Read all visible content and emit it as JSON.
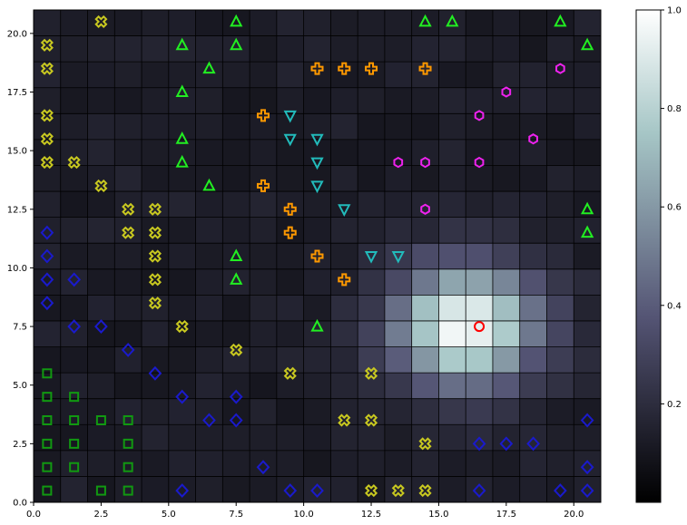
{
  "chart_data": {
    "type": "heatmap",
    "title": "",
    "xlabel": "",
    "ylabel": "",
    "grid_size": [
      21,
      19
    ],
    "xlim": [
      0,
      21
    ],
    "ylim": [
      0,
      21
    ],
    "x_ticks": [
      0,
      2.5,
      5,
      7.5,
      10,
      12.5,
      15,
      17.5,
      20
    ],
    "y_ticks": [
      0,
      2.5,
      5,
      7.5,
      10,
      12.5,
      15,
      17.5,
      20
    ],
    "x_tick_labels": [
      "0.0",
      "2.5",
      "5.0",
      "7.5",
      "10.0",
      "12.5",
      "15.0",
      "17.5",
      "20.0"
    ],
    "y_tick_labels": [
      "0.0",
      "2.5",
      "5.0",
      "7.5",
      "10.0",
      "12.5",
      "15.0",
      "17.5",
      "20.0"
    ],
    "colorbar": {
      "vmin": 0,
      "vmax": 1,
      "ticks": [
        0.2,
        0.4,
        0.6,
        0.8,
        1.0
      ],
      "tick_labels": [
        "0.2",
        "0.4",
        "0.6",
        "0.8",
        "1.0"
      ],
      "colormap": "bone"
    },
    "heat_peaks": [
      {
        "x": 16,
        "y": 7.5,
        "height": 0.85,
        "spread": 1.9
      }
    ],
    "heat_background": 0.1,
    "marker_legend": {
      "circle": "#ff0000",
      "cross": "#c8c820",
      "plus": "#ff9900",
      "triangle_up": "#22ee22",
      "triangle_down": "#22bbbb",
      "hexagon": "#ee22ee",
      "diamond": "#1a1acc",
      "square": "#119911"
    },
    "markers": [
      {
        "shape": "circle",
        "x": 16.5,
        "y": 7.5
      },
      {
        "shape": "cross",
        "x": 2.5,
        "y": 20.5
      },
      {
        "shape": "cross",
        "x": 0.5,
        "y": 19.5
      },
      {
        "shape": "cross",
        "x": 0.5,
        "y": 18.5
      },
      {
        "shape": "cross",
        "x": 0.5,
        "y": 16.5
      },
      {
        "shape": "cross",
        "x": 0.5,
        "y": 15.5
      },
      {
        "shape": "cross",
        "x": 0.5,
        "y": 14.5
      },
      {
        "shape": "cross",
        "x": 1.5,
        "y": 14.5
      },
      {
        "shape": "cross",
        "x": 2.5,
        "y": 13.5
      },
      {
        "shape": "cross",
        "x": 3.5,
        "y": 12.5
      },
      {
        "shape": "cross",
        "x": 4.5,
        "y": 12.5
      },
      {
        "shape": "cross",
        "x": 3.5,
        "y": 11.5
      },
      {
        "shape": "cross",
        "x": 4.5,
        "y": 11.5
      },
      {
        "shape": "cross",
        "x": 4.5,
        "y": 10.5
      },
      {
        "shape": "cross",
        "x": 4.5,
        "y": 9.5
      },
      {
        "shape": "cross",
        "x": 4.5,
        "y": 8.5
      },
      {
        "shape": "cross",
        "x": 5.5,
        "y": 7.5
      },
      {
        "shape": "cross",
        "x": 7.5,
        "y": 6.5
      },
      {
        "shape": "cross",
        "x": 9.5,
        "y": 5.5
      },
      {
        "shape": "cross",
        "x": 12.5,
        "y": 5.5
      },
      {
        "shape": "cross",
        "x": 11.5,
        "y": 3.5
      },
      {
        "shape": "cross",
        "x": 12.5,
        "y": 3.5
      },
      {
        "shape": "cross",
        "x": 14.5,
        "y": 2.5
      },
      {
        "shape": "cross",
        "x": 12.5,
        "y": 0.5
      },
      {
        "shape": "cross",
        "x": 13.5,
        "y": 0.5
      },
      {
        "shape": "cross",
        "x": 14.5,
        "y": 0.5
      },
      {
        "shape": "plus",
        "x": 10.5,
        "y": 18.5
      },
      {
        "shape": "plus",
        "x": 11.5,
        "y": 18.5
      },
      {
        "shape": "plus",
        "x": 12.5,
        "y": 18.5
      },
      {
        "shape": "plus",
        "x": 14.5,
        "y": 18.5
      },
      {
        "shape": "plus",
        "x": 8.5,
        "y": 16.5
      },
      {
        "shape": "plus",
        "x": 8.5,
        "y": 13.5
      },
      {
        "shape": "plus",
        "x": 9.5,
        "y": 12.5
      },
      {
        "shape": "plus",
        "x": 9.5,
        "y": 11.5
      },
      {
        "shape": "plus",
        "x": 10.5,
        "y": 10.5
      },
      {
        "shape": "plus",
        "x": 11.5,
        "y": 9.5
      },
      {
        "shape": "triangle_up",
        "x": 7.5,
        "y": 20.5
      },
      {
        "shape": "triangle_up",
        "x": 14.5,
        "y": 20.5
      },
      {
        "shape": "triangle_up",
        "x": 15.5,
        "y": 20.5
      },
      {
        "shape": "triangle_up",
        "x": 19.5,
        "y": 20.5
      },
      {
        "shape": "triangle_up",
        "x": 5.5,
        "y": 19.5
      },
      {
        "shape": "triangle_up",
        "x": 7.5,
        "y": 19.5
      },
      {
        "shape": "triangle_up",
        "x": 20.5,
        "y": 19.5
      },
      {
        "shape": "triangle_up",
        "x": 6.5,
        "y": 18.5
      },
      {
        "shape": "triangle_up",
        "x": 5.5,
        "y": 17.5
      },
      {
        "shape": "triangle_up",
        "x": 5.5,
        "y": 15.5
      },
      {
        "shape": "triangle_up",
        "x": 5.5,
        "y": 14.5
      },
      {
        "shape": "triangle_up",
        "x": 6.5,
        "y": 13.5
      },
      {
        "shape": "triangle_up",
        "x": 20.5,
        "y": 12.5
      },
      {
        "shape": "triangle_up",
        "x": 20.5,
        "y": 11.5
      },
      {
        "shape": "triangle_up",
        "x": 7.5,
        "y": 10.5
      },
      {
        "shape": "triangle_up",
        "x": 7.5,
        "y": 9.5
      },
      {
        "shape": "triangle_up",
        "x": 10.5,
        "y": 7.5
      },
      {
        "shape": "triangle_down",
        "x": 9.5,
        "y": 16.5
      },
      {
        "shape": "triangle_down",
        "x": 9.5,
        "y": 15.5
      },
      {
        "shape": "triangle_down",
        "x": 10.5,
        "y": 15.5
      },
      {
        "shape": "triangle_down",
        "x": 10.5,
        "y": 14.5
      },
      {
        "shape": "triangle_down",
        "x": 10.5,
        "y": 13.5
      },
      {
        "shape": "triangle_down",
        "x": 11.5,
        "y": 12.5
      },
      {
        "shape": "triangle_down",
        "x": 12.5,
        "y": 10.5
      },
      {
        "shape": "triangle_down",
        "x": 13.5,
        "y": 10.5
      },
      {
        "shape": "hexagon",
        "x": 19.5,
        "y": 18.5
      },
      {
        "shape": "hexagon",
        "x": 17.5,
        "y": 17.5
      },
      {
        "shape": "hexagon",
        "x": 16.5,
        "y": 16.5
      },
      {
        "shape": "hexagon",
        "x": 18.5,
        "y": 15.5
      },
      {
        "shape": "hexagon",
        "x": 13.5,
        "y": 14.5
      },
      {
        "shape": "hexagon",
        "x": 14.5,
        "y": 14.5
      },
      {
        "shape": "hexagon",
        "x": 16.5,
        "y": 14.5
      },
      {
        "shape": "hexagon",
        "x": 14.5,
        "y": 12.5
      },
      {
        "shape": "diamond",
        "x": 0.5,
        "y": 11.5
      },
      {
        "shape": "diamond",
        "x": 0.5,
        "y": 10.5
      },
      {
        "shape": "diamond",
        "x": 0.5,
        "y": 9.5
      },
      {
        "shape": "diamond",
        "x": 1.5,
        "y": 9.5
      },
      {
        "shape": "diamond",
        "x": 0.5,
        "y": 8.5
      },
      {
        "shape": "diamond",
        "x": 1.5,
        "y": 7.5
      },
      {
        "shape": "diamond",
        "x": 2.5,
        "y": 7.5
      },
      {
        "shape": "diamond",
        "x": 3.5,
        "y": 6.5
      },
      {
        "shape": "diamond",
        "x": 4.5,
        "y": 5.5
      },
      {
        "shape": "diamond",
        "x": 5.5,
        "y": 4.5
      },
      {
        "shape": "diamond",
        "x": 7.5,
        "y": 4.5
      },
      {
        "shape": "diamond",
        "x": 6.5,
        "y": 3.5
      },
      {
        "shape": "diamond",
        "x": 7.5,
        "y": 3.5
      },
      {
        "shape": "diamond",
        "x": 20.5,
        "y": 3.5
      },
      {
        "shape": "diamond",
        "x": 16.5,
        "y": 2.5
      },
      {
        "shape": "diamond",
        "x": 17.5,
        "y": 2.5
      },
      {
        "shape": "diamond",
        "x": 18.5,
        "y": 2.5
      },
      {
        "shape": "diamond",
        "x": 8.5,
        "y": 1.5
      },
      {
        "shape": "diamond",
        "x": 20.5,
        "y": 1.5
      },
      {
        "shape": "diamond",
        "x": 5.5,
        "y": 0.5
      },
      {
        "shape": "diamond",
        "x": 9.5,
        "y": 0.5
      },
      {
        "shape": "diamond",
        "x": 10.5,
        "y": 0.5
      },
      {
        "shape": "diamond",
        "x": 16.5,
        "y": 0.5
      },
      {
        "shape": "diamond",
        "x": 19.5,
        "y": 0.5
      },
      {
        "shape": "diamond",
        "x": 20.5,
        "y": 0.5
      },
      {
        "shape": "square",
        "x": 0.5,
        "y": 5.5
      },
      {
        "shape": "square",
        "x": 0.5,
        "y": 4.5
      },
      {
        "shape": "square",
        "x": 1.5,
        "y": 4.5
      },
      {
        "shape": "square",
        "x": 0.5,
        "y": 3.5
      },
      {
        "shape": "square",
        "x": 1.5,
        "y": 3.5
      },
      {
        "shape": "square",
        "x": 2.5,
        "y": 3.5
      },
      {
        "shape": "square",
        "x": 3.5,
        "y": 3.5
      },
      {
        "shape": "square",
        "x": 0.5,
        "y": 2.5
      },
      {
        "shape": "square",
        "x": 1.5,
        "y": 2.5
      },
      {
        "shape": "square",
        "x": 3.5,
        "y": 2.5
      },
      {
        "shape": "square",
        "x": 0.5,
        "y": 1.5
      },
      {
        "shape": "square",
        "x": 1.5,
        "y": 1.5
      },
      {
        "shape": "square",
        "x": 3.5,
        "y": 1.5
      },
      {
        "shape": "square",
        "x": 0.5,
        "y": 0.5
      },
      {
        "shape": "square",
        "x": 2.5,
        "y": 0.5
      },
      {
        "shape": "square",
        "x": 3.5,
        "y": 0.5
      }
    ]
  }
}
